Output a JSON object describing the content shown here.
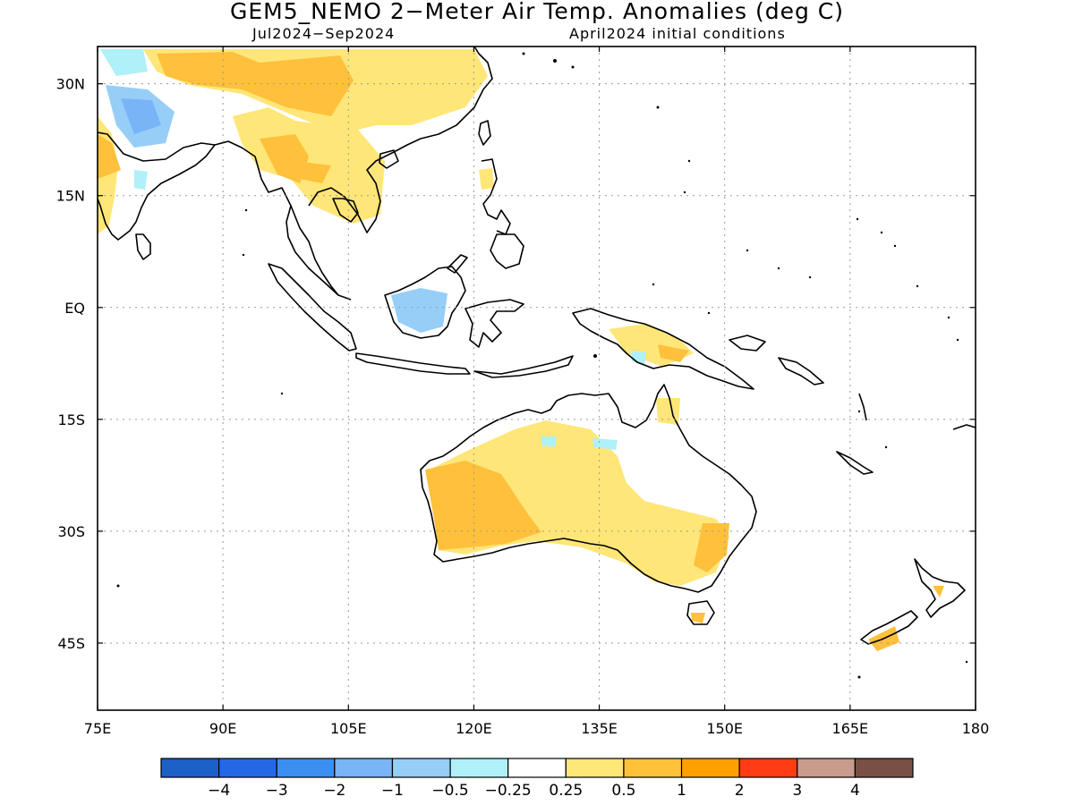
{
  "title": "GEM5_NEMO 2−Meter Air Temp. Anomalies (deg C)",
  "period": "Jul2024−Sep2024",
  "init": "April2024 initial conditions",
  "map": {
    "lon_range": [
      75,
      180
    ],
    "lat_range": [
      -54,
      35
    ],
    "lon_ticks": [
      {
        "value": 75,
        "label": "75E"
      },
      {
        "value": 90,
        "label": "90E"
      },
      {
        "value": 105,
        "label": "105E"
      },
      {
        "value": 120,
        "label": "120E"
      },
      {
        "value": 135,
        "label": "135E"
      },
      {
        "value": 150,
        "label": "150E"
      },
      {
        "value": 165,
        "label": "165E"
      },
      {
        "value": 180,
        "label": "180"
      }
    ],
    "lat_ticks": [
      {
        "value": 30,
        "label": "30N"
      },
      {
        "value": 15,
        "label": "15N"
      },
      {
        "value": 0,
        "label": "EQ"
      },
      {
        "value": -15,
        "label": "15S"
      },
      {
        "value": -30,
        "label": "30S"
      },
      {
        "value": -45,
        "label": "45S"
      }
    ],
    "grid": "dotted"
  },
  "colorbar": {
    "colors": [
      "#1c60c8",
      "#2468e6",
      "#3c8ef0",
      "#78b4f6",
      "#96cef8",
      "#b0f0f8",
      "#ffffff",
      "#ffe678",
      "#ffc03c",
      "#ffa000",
      "#ff3c14",
      "#c89c8c",
      "#785046"
    ],
    "labels": [
      "−4",
      "−3",
      "−2",
      "−1",
      "−0.5",
      "−0.25",
      "0.25",
      "0.5",
      "1",
      "2",
      "3",
      "4"
    ]
  }
}
